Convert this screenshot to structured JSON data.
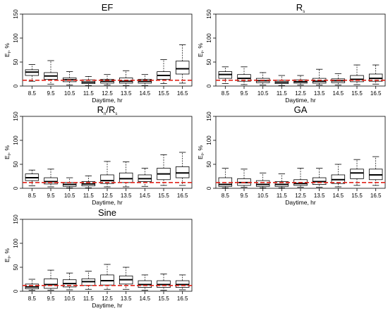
{
  "figure": {
    "panels_title": [
      "EF",
      "Rs",
      "Rn/Rs",
      "GA",
      "Sine"
    ]
  },
  "chart_data": [
    {
      "type": "boxplot",
      "title": "EF",
      "xlabel": "Daytime, hr",
      "ylabel": "Er, %",
      "ylim": [
        0,
        150
      ],
      "yticks": [
        0,
        50,
        100,
        150
      ],
      "categories": [
        "8.5",
        "9.5",
        "10.5",
        "11.5",
        "12.5",
        "13.5",
        "14.5",
        "15.5",
        "16.5"
      ],
      "boxes": [
        {
          "min": 10,
          "q1": 22,
          "median": 29,
          "q3": 34,
          "max": 45
        },
        {
          "min": 4,
          "q1": 14,
          "median": 21,
          "q3": 28,
          "max": 53
        },
        {
          "min": 2,
          "q1": 9,
          "median": 13,
          "q3": 17,
          "max": 30
        },
        {
          "min": 1,
          "q1": 5,
          "median": 8,
          "q3": 13,
          "max": 20
        },
        {
          "min": 2,
          "q1": 6,
          "median": 10,
          "q3": 14,
          "max": 24
        },
        {
          "min": 1,
          "q1": 6,
          "median": 10,
          "q3": 17,
          "max": 32
        },
        {
          "min": 1,
          "q1": 6,
          "median": 10,
          "q3": 14,
          "max": 24
        },
        {
          "min": 5,
          "q1": 14,
          "median": 22,
          "q3": 30,
          "max": 55
        },
        {
          "min": 6,
          "q1": 25,
          "median": 36,
          "q3": 52,
          "max": 86
        }
      ],
      "reference_line": 12,
      "reference_color": "#e0241b"
    },
    {
      "type": "boxplot",
      "title": "Rs",
      "xlabel": "Daytime, hr",
      "ylabel": "Er, %",
      "ylim": [
        0,
        150
      ],
      "yticks": [
        0,
        50,
        100,
        150
      ],
      "categories": [
        "8.5",
        "9.5",
        "10.5",
        "11.5",
        "12.5",
        "13.5",
        "14.5",
        "15.5",
        "16.5"
      ],
      "boxes": [
        {
          "min": 5,
          "q1": 16,
          "median": 24,
          "q3": 30,
          "max": 40
        },
        {
          "min": 3,
          "q1": 10,
          "median": 16,
          "q3": 24,
          "max": 40
        },
        {
          "min": 2,
          "q1": 7,
          "median": 11,
          "q3": 16,
          "max": 28
        },
        {
          "min": 1,
          "q1": 5,
          "median": 8,
          "q3": 12,
          "max": 22
        },
        {
          "min": 2,
          "q1": 6,
          "median": 9,
          "q3": 13,
          "max": 22
        },
        {
          "min": 2,
          "q1": 6,
          "median": 10,
          "q3": 16,
          "max": 35
        },
        {
          "min": 2,
          "q1": 7,
          "median": 11,
          "q3": 15,
          "max": 26
        },
        {
          "min": 3,
          "q1": 9,
          "median": 14,
          "q3": 22,
          "max": 44
        },
        {
          "min": 4,
          "q1": 10,
          "median": 16,
          "q3": 25,
          "max": 44
        }
      ],
      "reference_line": 12,
      "reference_color": "#e0241b"
    },
    {
      "type": "boxplot",
      "title": "Rn/Rs",
      "xlabel": "Daytime, hr",
      "ylabel": "Er, %",
      "ylim": [
        0,
        150
      ],
      "yticks": [
        0,
        50,
        100,
        150
      ],
      "categories": [
        "8.5",
        "9.5",
        "10.5",
        "11.5",
        "12.5",
        "13.5",
        "14.5",
        "15.5",
        "16.5"
      ],
      "boxes": [
        {
          "min": 5,
          "q1": 16,
          "median": 22,
          "q3": 30,
          "max": 38
        },
        {
          "min": 3,
          "q1": 9,
          "median": 14,
          "q3": 22,
          "max": 40
        },
        {
          "min": 1,
          "q1": 4,
          "median": 8,
          "q3": 12,
          "max": 22
        },
        {
          "min": 1,
          "q1": 5,
          "median": 9,
          "q3": 14,
          "max": 26
        },
        {
          "min": 3,
          "q1": 10,
          "median": 16,
          "q3": 28,
          "max": 56
        },
        {
          "min": 3,
          "q1": 12,
          "median": 20,
          "q3": 32,
          "max": 55
        },
        {
          "min": 4,
          "q1": 14,
          "median": 20,
          "q3": 28,
          "max": 42
        },
        {
          "min": 6,
          "q1": 18,
          "median": 30,
          "q3": 42,
          "max": 70
        },
        {
          "min": 6,
          "q1": 22,
          "median": 32,
          "q3": 45,
          "max": 75
        }
      ],
      "reference_line": 12,
      "reference_color": "#e0241b"
    },
    {
      "type": "boxplot",
      "title": "GA",
      "xlabel": "Daytime, hr",
      "ylabel": "Er, %",
      "ylim": [
        0,
        150
      ],
      "yticks": [
        0,
        50,
        100,
        150
      ],
      "categories": [
        "8.5",
        "9.5",
        "10.5",
        "11.5",
        "12.5",
        "13.5",
        "14.5",
        "15.5",
        "16.5"
      ],
      "boxes": [
        {
          "min": 1,
          "q1": 4,
          "median": 8,
          "q3": 22,
          "max": 42
        },
        {
          "min": 2,
          "q1": 6,
          "median": 12,
          "q3": 20,
          "max": 40
        },
        {
          "min": 1,
          "q1": 4,
          "median": 8,
          "q3": 16,
          "max": 32
        },
        {
          "min": 1,
          "q1": 4,
          "median": 8,
          "q3": 14,
          "max": 30
        },
        {
          "min": 2,
          "q1": 6,
          "median": 10,
          "q3": 18,
          "max": 42
        },
        {
          "min": 2,
          "q1": 8,
          "median": 14,
          "q3": 22,
          "max": 42
        },
        {
          "min": 3,
          "q1": 10,
          "median": 18,
          "q3": 28,
          "max": 50
        },
        {
          "min": 6,
          "q1": 20,
          "median": 32,
          "q3": 40,
          "max": 60
        },
        {
          "min": 6,
          "q1": 18,
          "median": 28,
          "q3": 40,
          "max": 66
        }
      ],
      "reference_line": 12,
      "reference_color": "#e0241b"
    },
    {
      "type": "boxplot",
      "title": "Sine",
      "xlabel": "Daytime, hr",
      "ylabel": "Er, %",
      "ylim": [
        0,
        150
      ],
      "yticks": [
        0,
        50,
        100,
        150
      ],
      "categories": [
        "8.5",
        "9.5",
        "10.5",
        "11.5",
        "12.5",
        "13.5",
        "14.5",
        "15.5",
        "16.5"
      ],
      "boxes": [
        {
          "min": 2,
          "q1": 5,
          "median": 9,
          "q3": 15,
          "max": 25
        },
        {
          "min": 2,
          "q1": 6,
          "median": 14,
          "q3": 26,
          "max": 44
        },
        {
          "min": 3,
          "q1": 9,
          "median": 16,
          "q3": 24,
          "max": 38
        },
        {
          "min": 4,
          "q1": 12,
          "median": 20,
          "q3": 26,
          "max": 42
        },
        {
          "min": 4,
          "q1": 13,
          "median": 22,
          "q3": 34,
          "max": 56
        },
        {
          "min": 4,
          "q1": 15,
          "median": 24,
          "q3": 32,
          "max": 50
        },
        {
          "min": 2,
          "q1": 8,
          "median": 14,
          "q3": 22,
          "max": 34
        },
        {
          "min": 2,
          "q1": 8,
          "median": 14,
          "q3": 22,
          "max": 36
        },
        {
          "min": 3,
          "q1": 8,
          "median": 14,
          "q3": 22,
          "max": 34
        }
      ],
      "reference_line": 12,
      "reference_color": "#e0241b"
    }
  ]
}
